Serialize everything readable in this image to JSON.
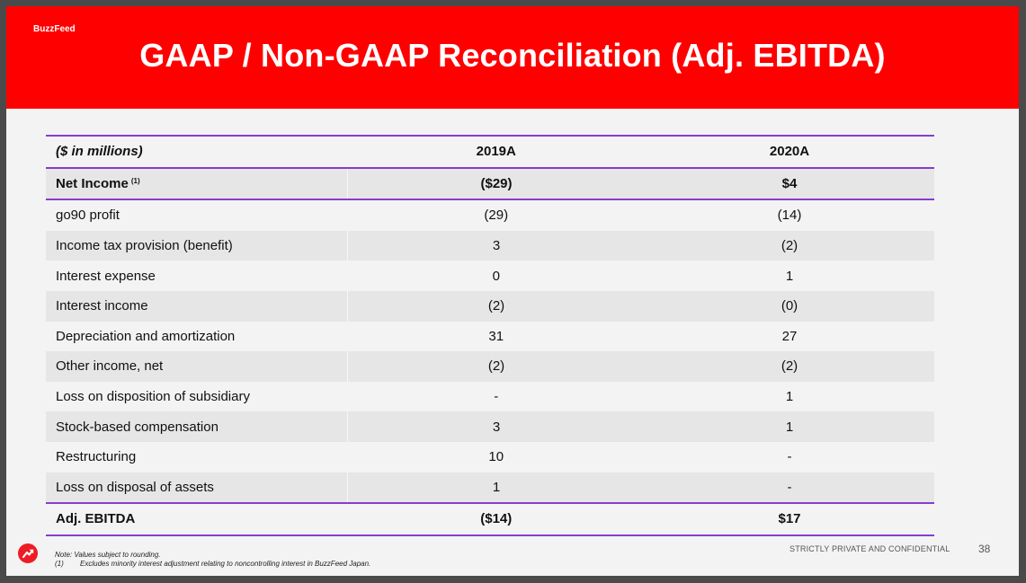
{
  "brand": "BuzzFeed",
  "title": "GAAP / Non-GAAP Reconciliation (Adj. EBITDA)",
  "table": {
    "header": {
      "label": "($ in millions)",
      "col1": "2019A",
      "col2": "2020A"
    },
    "net_income": {
      "label": "Net Income",
      "footnote_ref": "(1)",
      "col1": "($29)",
      "col2": "$4"
    },
    "rows": [
      {
        "label": "go90 profit",
        "col1": "(29)",
        "col2": "(14)"
      },
      {
        "label": "Income tax provision (benefit)",
        "col1": "3",
        "col2": "(2)"
      },
      {
        "label": "Interest expense",
        "col1": "0",
        "col2": "1"
      },
      {
        "label": "Interest income",
        "col1": "(2)",
        "col2": "(0)"
      },
      {
        "label": "Depreciation and amortization",
        "col1": "31",
        "col2": "27"
      },
      {
        "label": "Other income, net",
        "col1": "(2)",
        "col2": "(2)"
      },
      {
        "label": "Loss on disposition of subsidiary",
        "col1": "-",
        "col2": "1"
      },
      {
        "label": "Stock-based compensation",
        "col1": "3",
        "col2": "1"
      },
      {
        "label": "Restructuring",
        "col1": "10",
        "col2": "-"
      },
      {
        "label": "Loss on disposal of assets",
        "col1": "1",
        "col2": "-"
      }
    ],
    "total": {
      "label": "Adj. EBITDA",
      "col1": "($14)",
      "col2": "$17"
    }
  },
  "footer": {
    "note": "Note: Values subject to rounding.",
    "footnote_num": "(1)",
    "footnote_text": "Excludes minority interest adjustment relating to noncontrolling interest in BuzzFeed Japan.",
    "confidential": "STRICTLY PRIVATE AND CONFIDENTIAL",
    "page_number": "38"
  },
  "colors": {
    "header_red": "#fe0000",
    "rule_purple": "#8a3bd0",
    "logo_red": "#ee1c24"
  },
  "icons": {
    "logo": "buzzfeed-trending-arrow-icon"
  }
}
